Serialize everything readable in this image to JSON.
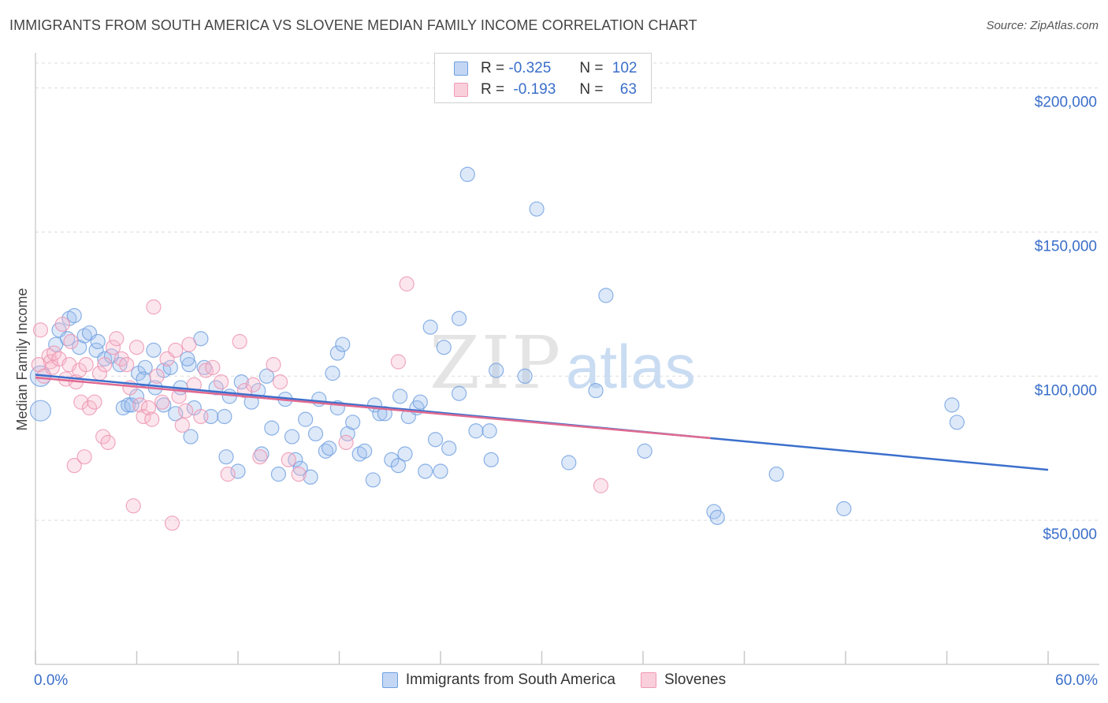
{
  "title": "IMMIGRANTS FROM SOUTH AMERICA VS SLOVENE MEDIAN FAMILY INCOME CORRELATION CHART",
  "source": "Source: ZipAtlas.com",
  "watermark": {
    "zip": "ZIP",
    "atlas": "atlas"
  },
  "legend": {
    "blue": {
      "r_label": "R =",
      "r_value": "-0.325",
      "n_label": "N =",
      "n_value": "102"
    },
    "pink": {
      "r_label": "R =",
      "r_value": "-0.193",
      "n_label": "N =",
      "n_value": "63"
    }
  },
  "colors": {
    "blue": "#6f9fe0",
    "pink": "#f09ab6",
    "blue_line": "#3b6fcc",
    "pink_line": "#e06a90",
    "axis_text": "#3a6ec9"
  },
  "chart_data": {
    "type": "scatter",
    "ylabel": "Median Family Income",
    "xlim": [
      0,
      60
    ],
    "ylim": [
      0,
      210000
    ],
    "x_tick_labels": [
      "0.0%",
      "60.0%"
    ],
    "y_ticks": [
      50000,
      100000,
      150000,
      200000
    ],
    "y_tick_labels": [
      "$50,000",
      "$100,000",
      "$150,000",
      "$200,000"
    ],
    "series": [
      {
        "name": "Immigrants from South America",
        "color": "#6f9fe0",
        "trend": {
          "x": [
            0,
            60
          ],
          "y": [
            100500,
            67500
          ]
        },
        "points": [
          [
            0.3,
            100000
          ],
          [
            0.3,
            88000
          ],
          [
            1.2,
            111000
          ],
          [
            1.4,
            116000
          ],
          [
            2.0,
            120000
          ],
          [
            2.3,
            121000
          ],
          [
            1.9,
            113000
          ],
          [
            2.6,
            110000
          ],
          [
            2.9,
            114000
          ],
          [
            3.2,
            115000
          ],
          [
            3.6,
            109000
          ],
          [
            3.7,
            112000
          ],
          [
            4.1,
            106000
          ],
          [
            4.5,
            107000
          ],
          [
            5.0,
            104000
          ],
          [
            5.2,
            89000
          ],
          [
            5.5,
            90000
          ],
          [
            5.7,
            90000
          ],
          [
            6.1,
            101000
          ],
          [
            6.5,
            103000
          ],
          [
            6.4,
            99000
          ],
          [
            7.0,
            109000
          ],
          [
            7.1,
            96000
          ],
          [
            7.6,
            102000
          ],
          [
            7.6,
            90000
          ],
          [
            8.0,
            103000
          ],
          [
            8.3,
            87000
          ],
          [
            8.6,
            96000
          ],
          [
            9.1,
            104000
          ],
          [
            9.2,
            79000
          ],
          [
            9.4,
            89000
          ],
          [
            9.8,
            113000
          ],
          [
            10.0,
            103000
          ],
          [
            10.4,
            86000
          ],
          [
            10.7,
            96000
          ],
          [
            11.2,
            86000
          ],
          [
            11.3,
            72000
          ],
          [
            11.5,
            93000
          ],
          [
            12.0,
            67000
          ],
          [
            12.2,
            98000
          ],
          [
            12.8,
            91000
          ],
          [
            13.2,
            95000
          ],
          [
            13.4,
            73000
          ],
          [
            13.7,
            100000
          ],
          [
            14.0,
            82000
          ],
          [
            14.4,
            66000
          ],
          [
            14.8,
            92000
          ],
          [
            15.2,
            79000
          ],
          [
            15.4,
            71000
          ],
          [
            15.7,
            68000
          ],
          [
            16.0,
            85000
          ],
          [
            16.3,
            65000
          ],
          [
            16.6,
            80000
          ],
          [
            16.8,
            92000
          ],
          [
            17.2,
            74000
          ],
          [
            17.4,
            75000
          ],
          [
            17.6,
            101000
          ],
          [
            17.9,
            89000
          ],
          [
            17.9,
            108000
          ],
          [
            18.2,
            111000
          ],
          [
            18.5,
            80000
          ],
          [
            18.8,
            84000
          ],
          [
            19.2,
            73000
          ],
          [
            19.5,
            74000
          ],
          [
            20.0,
            64000
          ],
          [
            20.1,
            90000
          ],
          [
            20.4,
            87000
          ],
          [
            20.7,
            87000
          ],
          [
            21.1,
            71000
          ],
          [
            21.5,
            69000
          ],
          [
            21.6,
            93000
          ],
          [
            21.9,
            73000
          ],
          [
            22.1,
            86000
          ],
          [
            22.6,
            89000
          ],
          [
            22.8,
            91000
          ],
          [
            23.1,
            67000
          ],
          [
            23.4,
            117000
          ],
          [
            23.7,
            78000
          ],
          [
            24.0,
            67000
          ],
          [
            24.2,
            110000
          ],
          [
            24.5,
            75000
          ],
          [
            25.1,
            94000
          ],
          [
            25.1,
            120000
          ],
          [
            25.6,
            170000
          ],
          [
            26.1,
            81000
          ],
          [
            26.9,
            81000
          ],
          [
            27.0,
            71000
          ],
          [
            27.3,
            102000
          ],
          [
            29.0,
            100000
          ],
          [
            29.7,
            158000
          ],
          [
            31.6,
            70000
          ],
          [
            33.2,
            95000
          ],
          [
            33.8,
            128000
          ],
          [
            36.1,
            74000
          ],
          [
            40.2,
            53000
          ],
          [
            40.4,
            51000
          ],
          [
            43.9,
            66000
          ],
          [
            47.9,
            54000
          ],
          [
            54.3,
            90000
          ],
          [
            54.6,
            84000
          ],
          [
            6.0,
            93000
          ],
          [
            9.0,
            106000
          ]
        ]
      },
      {
        "name": "Slovenes",
        "color": "#f09ab6",
        "trend": {
          "x": [
            0,
            40
          ],
          "y": [
            99500,
            78500
          ]
        },
        "points": [
          [
            0.2,
            104000
          ],
          [
            0.3,
            116000
          ],
          [
            0.5,
            100000
          ],
          [
            0.8,
            107000
          ],
          [
            0.9,
            105000
          ],
          [
            1.0,
            103000
          ],
          [
            1.1,
            108000
          ],
          [
            1.4,
            106000
          ],
          [
            1.6,
            118000
          ],
          [
            1.8,
            99000
          ],
          [
            2.0,
            104000
          ],
          [
            2.1,
            112000
          ],
          [
            2.3,
            69000
          ],
          [
            2.4,
            98000
          ],
          [
            2.6,
            102000
          ],
          [
            2.7,
            91000
          ],
          [
            2.9,
            72000
          ],
          [
            3.2,
            89000
          ],
          [
            3.5,
            91000
          ],
          [
            3.8,
            101000
          ],
          [
            4.0,
            79000
          ],
          [
            4.1,
            104000
          ],
          [
            4.3,
            77000
          ],
          [
            4.6,
            110000
          ],
          [
            4.8,
            113000
          ],
          [
            5.1,
            106000
          ],
          [
            5.4,
            104000
          ],
          [
            5.6,
            96000
          ],
          [
            5.8,
            55000
          ],
          [
            6.0,
            110000
          ],
          [
            6.2,
            90000
          ],
          [
            6.4,
            86000
          ],
          [
            6.7,
            89000
          ],
          [
            6.9,
            85000
          ],
          [
            7.0,
            124000
          ],
          [
            7.2,
            100000
          ],
          [
            7.5,
            91000
          ],
          [
            7.8,
            106000
          ],
          [
            8.1,
            49000
          ],
          [
            8.3,
            109000
          ],
          [
            8.5,
            93000
          ],
          [
            8.7,
            83000
          ],
          [
            8.9,
            88000
          ],
          [
            9.1,
            111000
          ],
          [
            9.4,
            97000
          ],
          [
            9.8,
            86000
          ],
          [
            10.1,
            102000
          ],
          [
            10.5,
            103000
          ],
          [
            11.0,
            98000
          ],
          [
            11.4,
            66000
          ],
          [
            12.1,
            112000
          ],
          [
            12.4,
            95000
          ],
          [
            12.9,
            97000
          ],
          [
            13.3,
            72000
          ],
          [
            14.1,
            104000
          ],
          [
            14.5,
            98000
          ],
          [
            15.0,
            71000
          ],
          [
            15.6,
            66000
          ],
          [
            18.4,
            77000
          ],
          [
            21.5,
            105000
          ],
          [
            22.0,
            132000
          ],
          [
            33.5,
            62000
          ],
          [
            3.0,
            104000
          ]
        ]
      }
    ]
  }
}
